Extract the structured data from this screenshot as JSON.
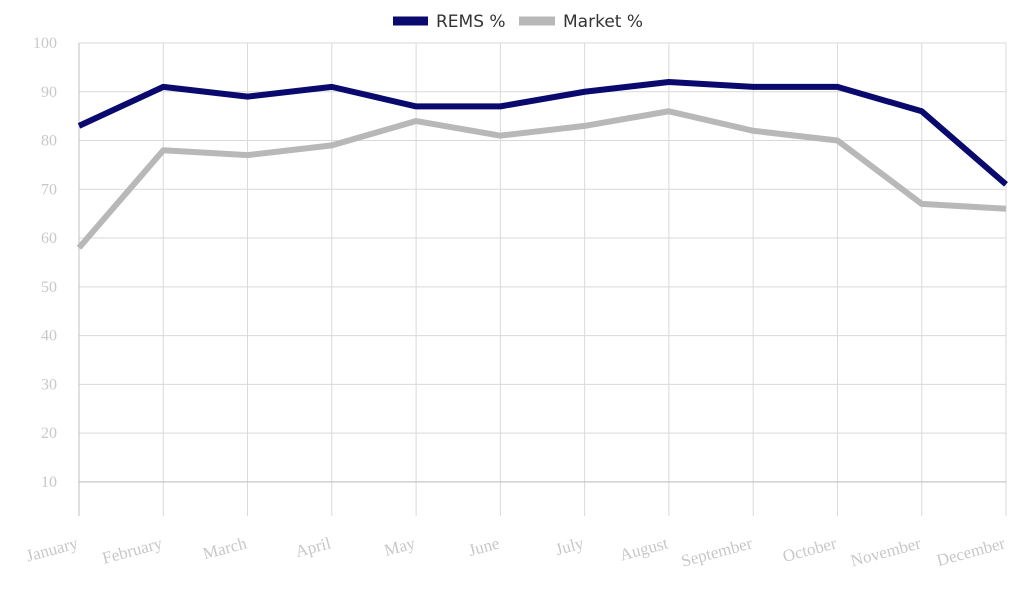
{
  "chart_data": {
    "type": "line",
    "categories": [
      "January",
      "February",
      "March",
      "April",
      "May",
      "June",
      "July",
      "August",
      "September",
      "October",
      "November",
      "December"
    ],
    "series": [
      {
        "name": "REMS %",
        "color": "#0a0a6e",
        "values": [
          83,
          91,
          89,
          91,
          87,
          87,
          90,
          92,
          91,
          91,
          86,
          71
        ]
      },
      {
        "name": "Market %",
        "color": "#b8b8b8",
        "values": [
          58,
          78,
          77,
          79,
          84,
          81,
          83,
          86,
          82,
          80,
          67,
          66
        ]
      }
    ],
    "y_ticks": [
      "10",
      "20",
      "30",
      "40",
      "50",
      "60",
      "70",
      "80",
      "90",
      "100"
    ],
    "ylim": [
      3,
      100
    ],
    "grid": true,
    "legend_position": "top-center"
  }
}
